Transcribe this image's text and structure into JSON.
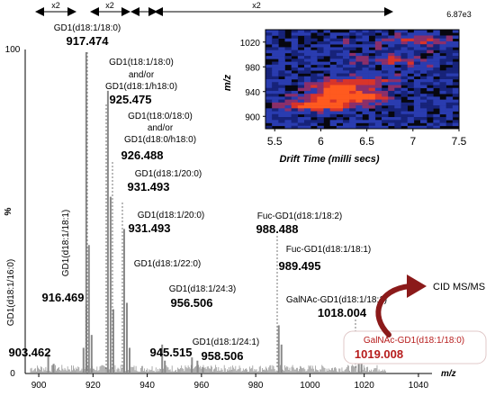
{
  "intensity_label": "6.87e3",
  "scale_markers": [
    "x2",
    "x2",
    "x2"
  ],
  "cid_label": "CID MS/MS",
  "colors": {
    "bars": "#8a8a8a",
    "highlight_text": "#b71c1c",
    "arrow": "#8b1a1a",
    "guide": "#555555",
    "heatmap_bg": "#07070f",
    "heatmap_band": "#1c2e9a",
    "heatmap_hot": "#e13a2a"
  },
  "chart_data": [
    {
      "type": "bar",
      "xlabel": "m/z",
      "ylabel": "%",
      "xlim": [
        895,
        1045
      ],
      "ylim": [
        0,
        100
      ],
      "xticks": [
        "900",
        "920",
        "940",
        "960",
        "980",
        "1000",
        "1020",
        "1040"
      ],
      "yticks": [
        "0",
        "100"
      ],
      "peaks": {
        "x": [
          903.5,
          905.5,
          916.5,
          917.5,
          918.5,
          919.5,
          925.5,
          926.5,
          927.5,
          931.5,
          932.5,
          933.5,
          945.5,
          946.5,
          956.5,
          958.5,
          960.5,
          988.5,
          989.5,
          1018.0,
          1019.0
        ],
        "y": [
          6,
          3,
          8,
          100,
          40,
          12,
          88,
          55,
          20,
          45,
          22,
          8,
          9,
          4,
          5,
          4,
          2,
          15,
          9,
          7,
          4
        ]
      },
      "annotations": [
        {
          "name": "GD1(d18:1/16:0)",
          "mz": "903.462",
          "highlight": false
        },
        {
          "name": "GD1(d18:1/18:1)",
          "mz": "916.469",
          "highlight": false
        },
        {
          "name": "GD1(d18:1/18:0)",
          "mz": "917.474",
          "highlight": false
        },
        {
          "name": "GD1(t18:1/18:0)\nand/or\nGD1(d18:1/h18:0)",
          "mz": "925.475",
          "highlight": false
        },
        {
          "name": "GD1(t18:0/18:0)\nand/or\nGD1(d18:0/h18:0)",
          "mz": "926.488",
          "highlight": false
        },
        {
          "name": "GD1(d18:1/20:0)",
          "mz": "931.493",
          "highlight": false
        },
        {
          "name": "GD1(d18:1/20:0)",
          "mz": "931.493",
          "highlight": false
        },
        {
          "name": "GD1(d18:1/22:0)",
          "mz": "945.515",
          "highlight": false
        },
        {
          "name": "GD1(d18:1/24:3)",
          "mz": "956.506",
          "highlight": false
        },
        {
          "name": "GD1(d18:1/24:1)",
          "mz": "958.506",
          "highlight": false
        },
        {
          "name": "Fuc-GD1(d18:1/18:2)",
          "mz": "988.488",
          "highlight": false
        },
        {
          "name": "Fuc-GD1(d18:1/18:1)",
          "mz": "989.495",
          "highlight": false
        },
        {
          "name": "GalNAc-GD1(d18:1/18:1)",
          "mz": "1018.004",
          "highlight": false
        },
        {
          "name": "GalNAc-GD1(d18:1/18:0)",
          "mz": "1019.008",
          "highlight": true
        }
      ]
    },
    {
      "type": "heatmap",
      "xlabel": "Drift Time (milli secs)",
      "ylabel": "m/z",
      "xlim": [
        5.4,
        7.5
      ],
      "ylim": [
        880,
        1040
      ],
      "xticks": [
        "5.5",
        "6",
        "6.5",
        "7",
        "7.5"
      ],
      "yticks": [
        "1020",
        "980",
        "940",
        "900"
      ],
      "hotspots": [
        {
          "x": 6.3,
          "y": 932,
          "level": 1.0
        },
        {
          "x": 6.0,
          "y": 918,
          "level": 0.9
        },
        {
          "x": 6.2,
          "y": 946,
          "level": 0.6
        },
        {
          "x": 6.4,
          "y": 958,
          "level": 0.4
        },
        {
          "x": 6.8,
          "y": 990,
          "level": 0.35
        },
        {
          "x": 7.0,
          "y": 1020,
          "level": 0.3
        }
      ]
    }
  ]
}
